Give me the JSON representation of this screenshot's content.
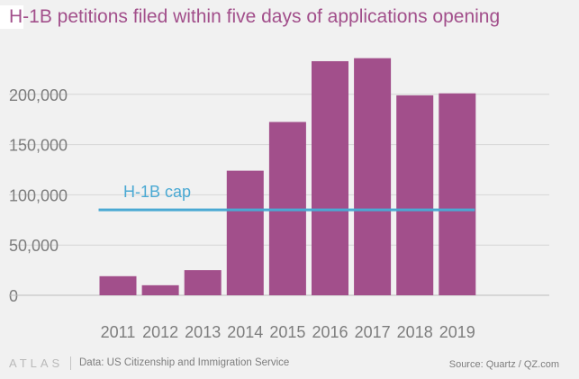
{
  "title": "H-1B petitions filed within five days of applications opening",
  "footer": {
    "logo": "ATLAS",
    "data_source": "Data: US Citizenship and Immigration Service",
    "credit": "Source: Quartz / QZ.com"
  },
  "colors": {
    "bar": "#a24f8b",
    "cap_line": "#4aa9d3",
    "title": "#a24f8b",
    "axis_text": "#7d7d7d",
    "grid": "#d6d6d6",
    "background": "#f1f1f1"
  },
  "chart_data": {
    "type": "bar",
    "title": "H-1B petitions filed within five days of applications opening",
    "categories": [
      "2011",
      "2012",
      "2013",
      "2014",
      "2015",
      "2016",
      "2017",
      "2018",
      "2019"
    ],
    "values": [
      19000,
      10000,
      25000,
      124000,
      172500,
      233000,
      236000,
      199000,
      201000
    ],
    "ylim": [
      0,
      250000
    ],
    "yticks": [
      0,
      50000,
      100000,
      150000,
      200000
    ],
    "ytick_labels": [
      "0",
      "50,000",
      "100,000",
      "150,000",
      "200,000"
    ],
    "grid": true,
    "reference_line": {
      "label": "H-1B cap",
      "value": 85000,
      "x_start": "2011",
      "x_end": "2019"
    }
  }
}
